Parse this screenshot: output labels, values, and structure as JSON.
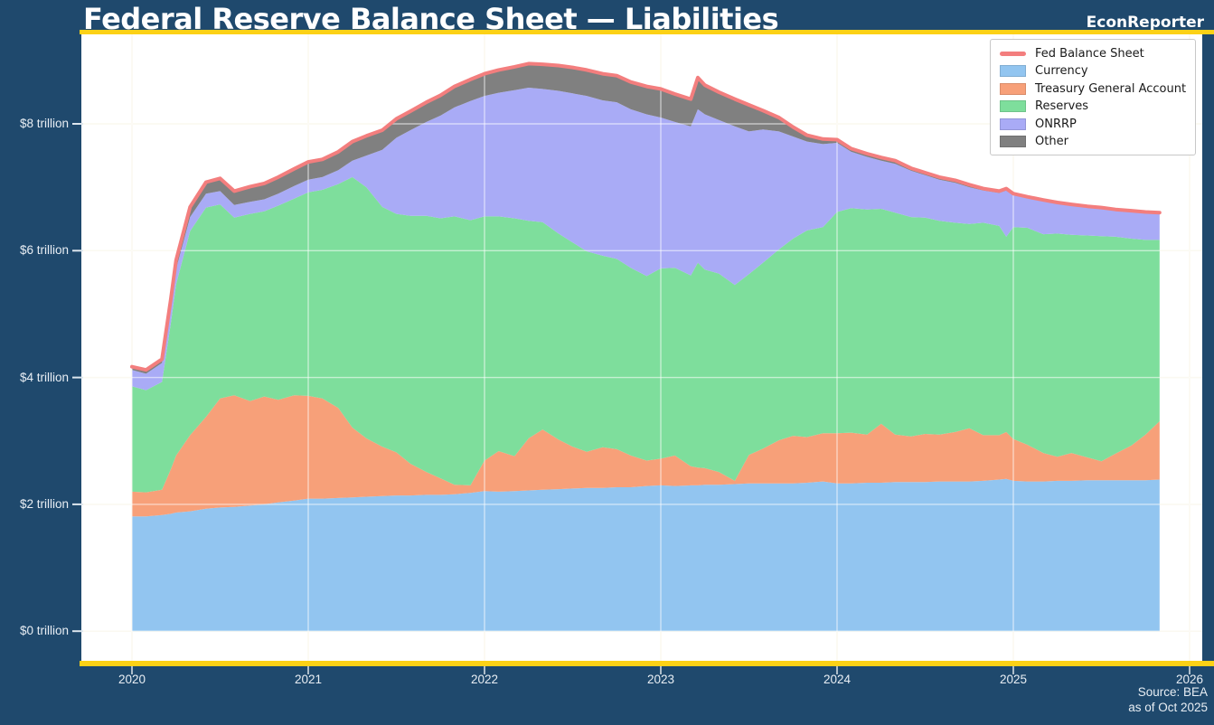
{
  "header": {
    "title": "Federal Reserve Balance Sheet — Liabilities",
    "brand": "EconReporter"
  },
  "footer": {
    "source": "Source: BEA",
    "as_of": "as of Oct 2025"
  },
  "colors": {
    "background_navy": "#1F496D",
    "accent_gold": "#FCD116",
    "plot_background": "#FFFFFF",
    "axis_text": "#E8EEF4",
    "grid_under": "#F6F1DF",
    "grid_over": "rgba(255,255,255,0.55)",
    "legend_border": "#C8C8C8",
    "legend_text": "#1A1A1A"
  },
  "chart_data": {
    "type": "area",
    "stacked": true,
    "title": "Federal Reserve Balance Sheet — Liabilities",
    "xlabel": "",
    "ylabel": "",
    "units": "trillions of US dollars",
    "grid": true,
    "legend_position": "upper right",
    "xlim": [
      2019.71,
      2026.07
    ],
    "ylim": [
      -0.47,
      9.41
    ],
    "xtick_values": [
      2020,
      2021,
      2022,
      2023,
      2024,
      2025,
      2026
    ],
    "xtick_labels": [
      "2020",
      "2021",
      "2022",
      "2023",
      "2024",
      "2025",
      "2026"
    ],
    "ytick_values": [
      0,
      2,
      4,
      6,
      8
    ],
    "ytick_labels": [
      "$0 trillion",
      "$2 trillion",
      "$4 trillion",
      "$6 trillion",
      "$8 trillion"
    ],
    "x": [
      2020.0,
      2020.08,
      2020.17,
      2020.22,
      2020.25,
      2020.33,
      2020.42,
      2020.5,
      2020.58,
      2020.67,
      2020.75,
      2020.83,
      2020.92,
      2021.0,
      2021.08,
      2021.17,
      2021.25,
      2021.33,
      2021.42,
      2021.5,
      2021.58,
      2021.67,
      2021.75,
      2021.83,
      2021.92,
      2022.0,
      2022.08,
      2022.17,
      2022.25,
      2022.33,
      2022.42,
      2022.5,
      2022.58,
      2022.67,
      2022.75,
      2022.83,
      2022.92,
      2023.0,
      2023.08,
      2023.17,
      2023.21,
      2023.25,
      2023.33,
      2023.42,
      2023.5,
      2023.58,
      2023.67,
      2023.75,
      2023.83,
      2023.92,
      2024.0,
      2024.08,
      2024.17,
      2024.25,
      2024.33,
      2024.42,
      2024.5,
      2024.58,
      2024.67,
      2024.75,
      2024.83,
      2024.92,
      2024.96,
      2025.0,
      2025.08,
      2025.17,
      2025.25,
      2025.33,
      2025.42,
      2025.5,
      2025.58,
      2025.67,
      2025.75,
      2025.83
    ],
    "series": [
      {
        "name": "Currency",
        "color": "#92C5F0",
        "values": [
          1.81,
          1.81,
          1.83,
          1.85,
          1.87,
          1.89,
          1.93,
          1.95,
          1.96,
          1.98,
          2.0,
          2.03,
          2.06,
          2.09,
          2.09,
          2.1,
          2.11,
          2.12,
          2.13,
          2.14,
          2.14,
          2.15,
          2.15,
          2.16,
          2.18,
          2.21,
          2.2,
          2.21,
          2.22,
          2.23,
          2.24,
          2.25,
          2.26,
          2.26,
          2.27,
          2.27,
          2.29,
          2.3,
          2.29,
          2.3,
          2.3,
          2.31,
          2.31,
          2.32,
          2.33,
          2.33,
          2.33,
          2.33,
          2.34,
          2.36,
          2.33,
          2.33,
          2.34,
          2.34,
          2.35,
          2.35,
          2.35,
          2.36,
          2.36,
          2.36,
          2.37,
          2.39,
          2.4,
          2.37,
          2.36,
          2.36,
          2.37,
          2.37,
          2.38,
          2.38,
          2.38,
          2.38,
          2.38,
          2.39
        ]
      },
      {
        "name": "Treasury General Account",
        "color": "#F7A079",
        "values": [
          0.39,
          0.38,
          0.4,
          0.7,
          0.9,
          1.2,
          1.45,
          1.72,
          1.76,
          1.65,
          1.7,
          1.62,
          1.66,
          1.62,
          1.58,
          1.42,
          1.1,
          0.92,
          0.78,
          0.68,
          0.5,
          0.36,
          0.26,
          0.15,
          0.12,
          0.48,
          0.64,
          0.55,
          0.82,
          0.95,
          0.78,
          0.66,
          0.57,
          0.64,
          0.6,
          0.5,
          0.4,
          0.42,
          0.48,
          0.3,
          0.28,
          0.26,
          0.2,
          0.05,
          0.45,
          0.55,
          0.68,
          0.75,
          0.72,
          0.76,
          0.79,
          0.8,
          0.76,
          0.93,
          0.75,
          0.72,
          0.76,
          0.74,
          0.78,
          0.84,
          0.72,
          0.7,
          0.74,
          0.66,
          0.58,
          0.45,
          0.38,
          0.44,
          0.36,
          0.3,
          0.42,
          0.55,
          0.72,
          0.92
        ]
      },
      {
        "name": "Reserves",
        "color": "#7EDE9C",
        "values": [
          1.66,
          1.61,
          1.7,
          2.3,
          2.7,
          3.22,
          3.3,
          3.06,
          2.8,
          2.95,
          2.92,
          3.06,
          3.1,
          3.21,
          3.29,
          3.53,
          3.95,
          3.96,
          3.78,
          3.76,
          3.91,
          4.04,
          4.1,
          4.23,
          4.18,
          3.85,
          3.7,
          3.75,
          3.43,
          3.27,
          3.25,
          3.22,
          3.16,
          3.02,
          3.0,
          2.96,
          2.91,
          3.0,
          2.96,
          3.01,
          3.23,
          3.13,
          3.13,
          3.09,
          2.85,
          2.93,
          3.01,
          3.11,
          3.26,
          3.25,
          3.49,
          3.54,
          3.55,
          3.39,
          3.5,
          3.46,
          3.41,
          3.37,
          3.3,
          3.22,
          3.35,
          3.3,
          3.08,
          3.34,
          3.42,
          3.45,
          3.52,
          3.44,
          3.5,
          3.55,
          3.42,
          3.26,
          3.07,
          2.86
        ]
      },
      {
        "name": "ONRRP",
        "color": "#A9ABF6",
        "values": [
          0.26,
          0.26,
          0.3,
          0.28,
          0.24,
          0.22,
          0.22,
          0.21,
          0.2,
          0.19,
          0.19,
          0.19,
          0.2,
          0.2,
          0.2,
          0.22,
          0.26,
          0.5,
          0.9,
          1.2,
          1.35,
          1.48,
          1.62,
          1.72,
          1.88,
          1.9,
          1.95,
          2.02,
          2.1,
          2.1,
          2.25,
          2.35,
          2.45,
          2.45,
          2.47,
          2.5,
          2.55,
          2.38,
          2.3,
          2.35,
          2.42,
          2.45,
          2.42,
          2.5,
          2.25,
          2.1,
          1.86,
          1.61,
          1.4,
          1.31,
          1.09,
          0.89,
          0.83,
          0.76,
          0.77,
          0.73,
          0.67,
          0.65,
          0.63,
          0.58,
          0.51,
          0.52,
          0.73,
          0.51,
          0.47,
          0.52,
          0.47,
          0.46,
          0.44,
          0.43,
          0.41,
          0.42,
          0.42,
          0.41
        ]
      },
      {
        "name": "Other",
        "color": "#808080",
        "values": [
          0.05,
          0.06,
          0.06,
          0.1,
          0.14,
          0.16,
          0.18,
          0.2,
          0.22,
          0.24,
          0.25,
          0.26,
          0.27,
          0.28,
          0.28,
          0.29,
          0.3,
          0.31,
          0.31,
          0.3,
          0.3,
          0.31,
          0.32,
          0.33,
          0.34,
          0.35,
          0.36,
          0.37,
          0.38,
          0.39,
          0.4,
          0.41,
          0.41,
          0.42,
          0.42,
          0.43,
          0.44,
          0.45,
          0.44,
          0.43,
          0.5,
          0.46,
          0.44,
          0.43,
          0.42,
          0.3,
          0.22,
          0.15,
          0.1,
          0.08,
          0.05,
          0.05,
          0.05,
          0.05,
          0.05,
          0.04,
          0.04,
          0.04,
          0.04,
          0.04,
          0.03,
          0.03,
          0.03,
          0.02,
          0.02,
          0.02,
          0.02,
          0.02,
          0.02,
          0.02,
          0.02,
          0.02,
          0.02,
          0.02
        ]
      }
    ],
    "line": {
      "name": "Fed Balance Sheet",
      "color": "#F37E7E",
      "values": [
        4.17,
        4.12,
        4.29,
        5.23,
        5.85,
        6.69,
        7.08,
        7.14,
        6.94,
        7.01,
        7.06,
        7.16,
        7.29,
        7.4,
        7.44,
        7.56,
        7.72,
        7.81,
        7.9,
        8.08,
        8.2,
        8.34,
        8.45,
        8.59,
        8.7,
        8.79,
        8.85,
        8.9,
        8.95,
        8.94,
        8.92,
        8.89,
        8.85,
        8.79,
        8.76,
        8.66,
        8.59,
        8.55,
        8.47,
        8.39,
        8.73,
        8.61,
        8.5,
        8.39,
        8.3,
        8.21,
        8.1,
        7.95,
        7.82,
        7.76,
        7.75,
        7.61,
        7.53,
        7.47,
        7.42,
        7.3,
        7.23,
        7.16,
        7.11,
        7.04,
        6.98,
        6.94,
        6.98,
        6.9,
        6.85,
        6.8,
        6.76,
        6.73,
        6.7,
        6.68,
        6.65,
        6.63,
        6.61,
        6.6
      ]
    }
  },
  "legend": {
    "entries": [
      "Fed Balance Sheet",
      "Currency",
      "Treasury General Account",
      "Reserves",
      "ONRRP",
      "Other"
    ]
  }
}
